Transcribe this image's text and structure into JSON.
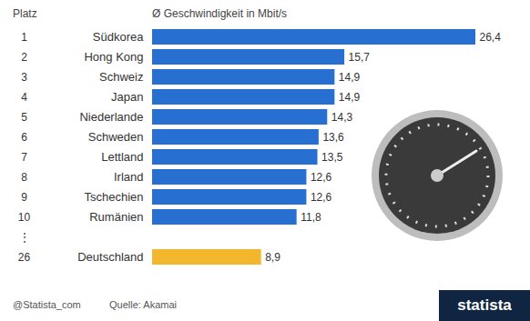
{
  "chart_data": {
    "type": "bar",
    "orientation": "horizontal",
    "rank_label": "Platz",
    "x_label": "Ø Geschwindigkeit in Mbit/s",
    "ranks": [
      1,
      2,
      3,
      4,
      5,
      6,
      7,
      8,
      9,
      10,
      "⋮",
      26
    ],
    "categories": [
      "Südkorea",
      "Hong Kong",
      "Schweiz",
      "Japan",
      "Niederlande",
      "Schweden",
      "Lettland",
      "Irland",
      "Tschechien",
      "Rumänien",
      null,
      "Deutschland"
    ],
    "values": [
      26.4,
      15.7,
      14.9,
      14.9,
      14.3,
      13.6,
      13.5,
      12.6,
      12.6,
      11.8,
      null,
      8.9
    ],
    "value_labels": [
      "26,4",
      "15,7",
      "14,9",
      "14,9",
      "14,3",
      "13,6",
      "13,5",
      "12,6",
      "12,6",
      "11,8",
      null,
      "8,9"
    ],
    "colors": [
      "#2770d2",
      "#2770d2",
      "#2770d2",
      "#2770d2",
      "#2770d2",
      "#2770d2",
      "#2770d2",
      "#2770d2",
      "#2770d2",
      "#2770d2",
      null,
      "#f2b72c"
    ],
    "xlim": [
      0,
      26.4
    ],
    "data_labels": true,
    "tick_labels": "y",
    "grid": false,
    "credit": "@Statista_com",
    "source": "Quelle: Akamai",
    "brand": "statista"
  }
}
